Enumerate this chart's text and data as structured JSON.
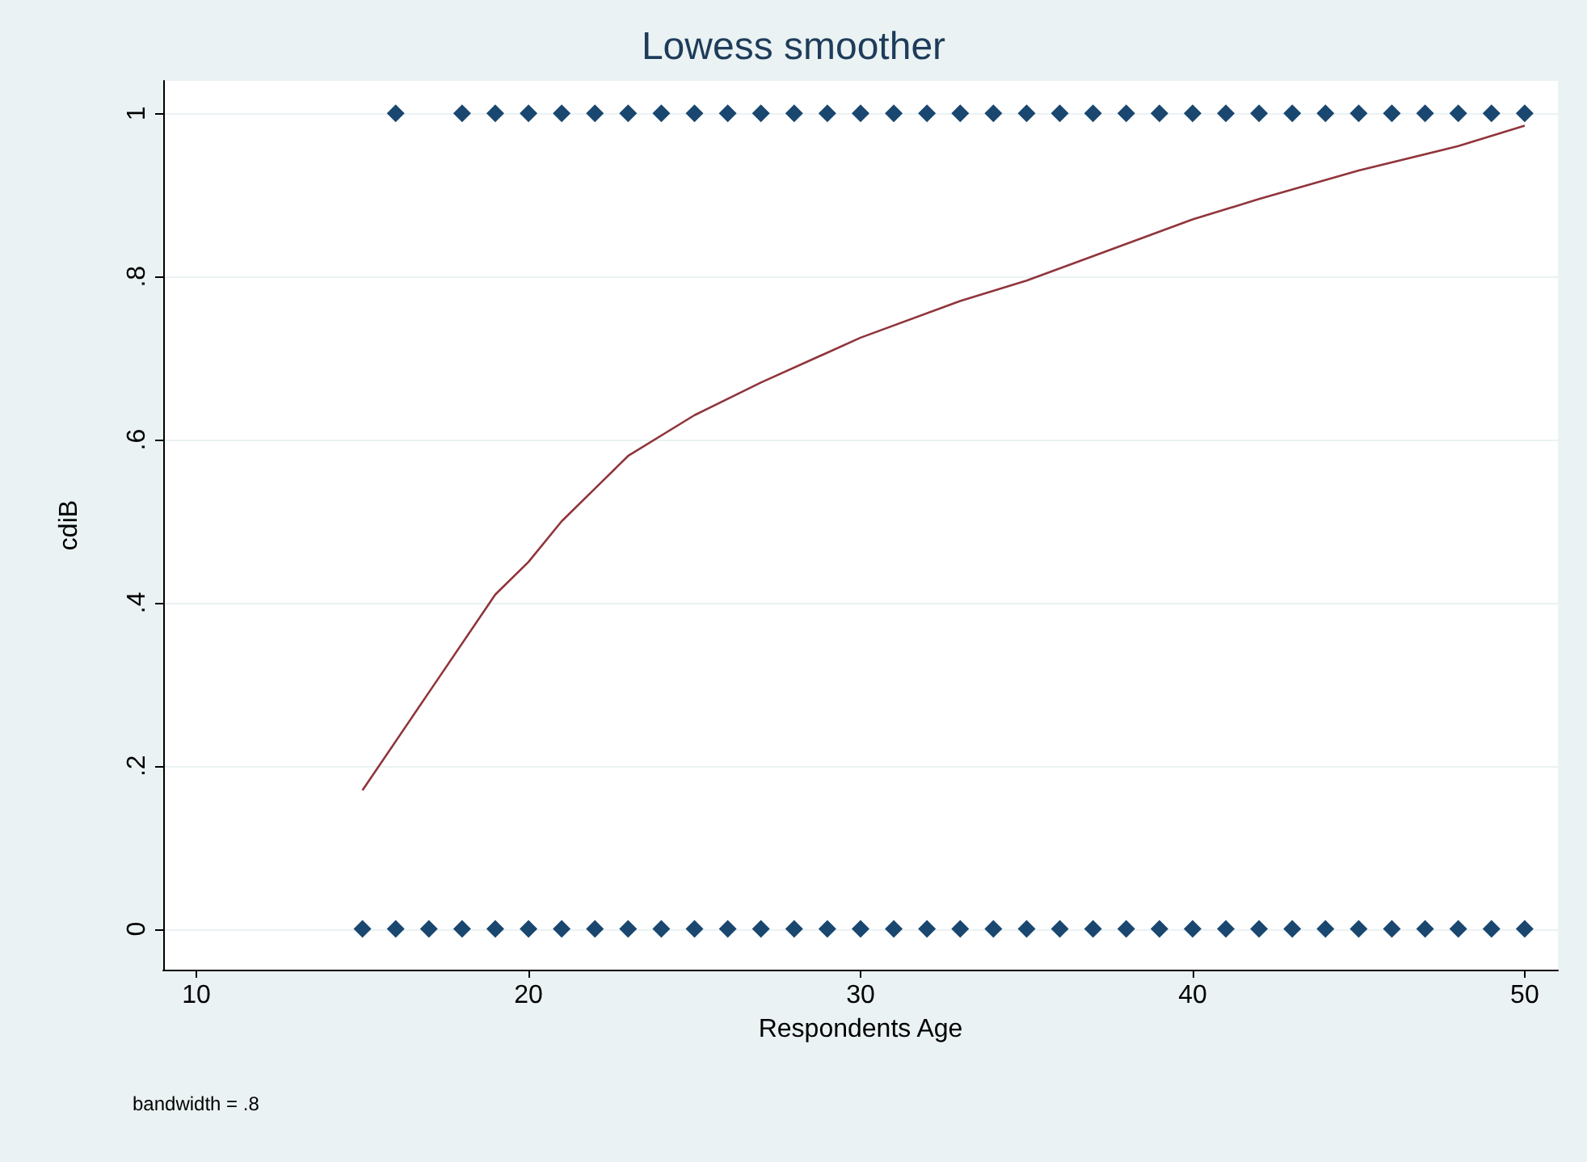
{
  "chart_data": {
    "type": "scatter",
    "title": "Lowess smoother",
    "xlabel": "Respondents Age",
    "ylabel": "cdiB",
    "annotations": [
      "bandwidth = .8"
    ],
    "series": [
      {
        "color": "#1a476f",
        "marker": "diamond",
        "x": [
          16,
          18,
          19,
          20,
          21,
          22,
          23,
          24,
          25,
          26,
          27,
          28,
          29,
          30,
          31,
          32,
          33,
          34,
          35,
          36,
          37,
          38,
          39,
          40,
          41,
          42,
          43,
          44,
          45,
          46,
          47,
          48,
          49,
          50
        ],
        "values": [
          1,
          1,
          1,
          1,
          1,
          1,
          1,
          1,
          1,
          1,
          1,
          1,
          1,
          1,
          1,
          1,
          1,
          1,
          1,
          1,
          1,
          1,
          1,
          1,
          1,
          1,
          1,
          1,
          1,
          1,
          1,
          1,
          1,
          1
        ]
      },
      {
        "color": "#1a476f",
        "marker": "diamond",
        "x": [
          15,
          16,
          17,
          18,
          19,
          20,
          21,
          22,
          23,
          24,
          25,
          26,
          27,
          28,
          29,
          30,
          31,
          32,
          33,
          34,
          35,
          36,
          37,
          38,
          39,
          40,
          41,
          42,
          43,
          44,
          45,
          46,
          47,
          48,
          49,
          50
        ],
        "values": [
          0,
          0,
          0,
          0,
          0,
          0,
          0,
          0,
          0,
          0,
          0,
          0,
          0,
          0,
          0,
          0,
          0,
          0,
          0,
          0,
          0,
          0,
          0,
          0,
          0,
          0,
          0,
          0,
          0,
          0,
          0,
          0,
          0,
          0,
          0,
          0
        ]
      },
      {
        "type": "line",
        "color": "#90353b",
        "marker": "none",
        "line_style": "solid",
        "x": [
          15,
          17,
          19,
          20,
          21,
          22,
          23,
          25,
          27,
          30,
          33,
          35,
          37,
          40,
          42,
          45,
          48,
          50
        ],
        "values": [
          0.17,
          0.29,
          0.41,
          0.45,
          0.5,
          0.54,
          0.58,
          0.63,
          0.67,
          0.725,
          0.77,
          0.795,
          0.825,
          0.87,
          0.895,
          0.93,
          0.96,
          0.985
        ]
      }
    ],
    "xlim": [
      9,
      51
    ],
    "xticks": [
      10,
      20,
      30,
      40,
      50
    ],
    "ylim": [
      -0.05,
      1.04
    ],
    "yticks": [
      0,
      {
        "value": 0.2,
        "label": ".2"
      },
      {
        "value": 0.4,
        "label": ".4"
      },
      {
        "value": 0.6,
        "label": ".6"
      },
      {
        "value": 0.8,
        "label": ".8"
      },
      1
    ],
    "grid": "y"
  }
}
